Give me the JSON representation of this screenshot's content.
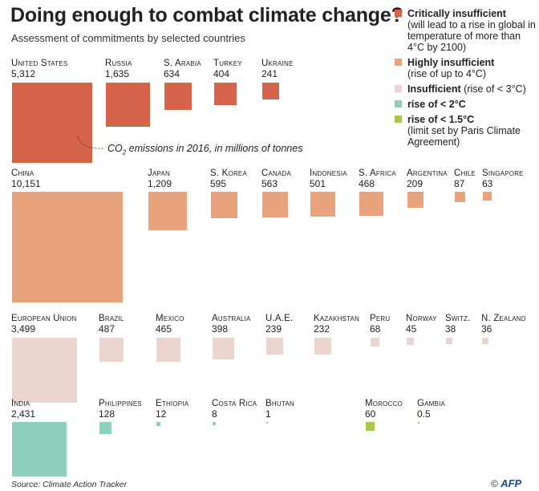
{
  "header": {
    "title": "Doing enough to combat climate change?",
    "subtitle": "Assessment of commitments by selected countries"
  },
  "annotation": {
    "prefix": "CO",
    "sub": "2",
    "suffix": " emissions in 2016, in millions of tonnes"
  },
  "legend": [
    {
      "label": "Critically insufficient",
      "note": "(will lead to a rise in global in temperature of more than 4°C by 2100)",
      "color": "#d4654a"
    },
    {
      "label": "Highly insufficient",
      "note": "(rise of up to 4°C)",
      "color": "#e9a47e"
    },
    {
      "label": "Insufficient",
      "note": "(rise of < 3°C)",
      "color": "#ecd5ce"
    },
    {
      "label": "rise of < 2°C",
      "note": "",
      "color": "#8dd0c0"
    },
    {
      "label": "rise of < 1.5°C",
      "note": "(limit set by Paris Climate Agreement)",
      "color": "#a7c84a"
    }
  ],
  "source": "Source: Climate Action Tracker",
  "credit": {
    "copyright": "©",
    "brand": "AFP"
  },
  "chart_data": {
    "type": "proportional-area squares",
    "unit": "CO2 emissions in 2016, in millions of tonnes",
    "categories": [
      {
        "name": "Critically insufficient",
        "countries": [
          {
            "name": "United States",
            "value": "5,312",
            "num": 5312
          },
          {
            "name": "Russia",
            "value": "1,635",
            "num": 1635
          },
          {
            "name": "S. Arabia",
            "value": "634",
            "num": 634
          },
          {
            "name": "Turkey",
            "value": "404",
            "num": 404
          },
          {
            "name": "Ukraine",
            "value": "241",
            "num": 241
          }
        ]
      },
      {
        "name": "Highly insufficient",
        "countries": [
          {
            "name": "China",
            "value": "10,151",
            "num": 10151
          },
          {
            "name": "Japan",
            "value": "1,209",
            "num": 1209
          },
          {
            "name": "S. Korea",
            "value": "595",
            "num": 595
          },
          {
            "name": "Canada",
            "value": "563",
            "num": 563
          },
          {
            "name": "Indonesia",
            "value": "501",
            "num": 501
          },
          {
            "name": "S. Africa",
            "value": "468",
            "num": 468
          },
          {
            "name": "Argentina",
            "value": "209",
            "num": 209
          },
          {
            "name": "Chile",
            "value": "87",
            "num": 87
          },
          {
            "name": "Singapore",
            "value": "63",
            "num": 63
          }
        ]
      },
      {
        "name": "Insufficient",
        "countries": [
          {
            "name": "European Union",
            "value": "3,499",
            "num": 3499
          },
          {
            "name": "Brazil",
            "value": "487",
            "num": 487
          },
          {
            "name": "Mexico",
            "value": "465",
            "num": 465
          },
          {
            "name": "Australia",
            "value": "398",
            "num": 398
          },
          {
            "name": "U.A.E.",
            "value": "239",
            "num": 239
          },
          {
            "name": "Kazakhstan",
            "value": "232",
            "num": 232
          },
          {
            "name": "Peru",
            "value": "68",
            "num": 68
          },
          {
            "name": "Norway",
            "value": "45",
            "num": 45
          },
          {
            "name": "Switz.",
            "value": "38",
            "num": 38
          },
          {
            "name": "N. Zealand",
            "value": "36",
            "num": 36
          }
        ]
      },
      {
        "name": "rise of < 2°C",
        "countries": [
          {
            "name": "India",
            "value": "2,431",
            "num": 2431
          },
          {
            "name": "Philippines",
            "value": "128",
            "num": 128
          },
          {
            "name": "Ethiopia",
            "value": "12",
            "num": 12
          },
          {
            "name": "Costa Rica",
            "value": "8",
            "num": 8
          },
          {
            "name": "Bhutan",
            "value": "1",
            "num": 1
          }
        ]
      },
      {
        "name": "rise of < 1.5°C",
        "countries": [
          {
            "name": "Morocco",
            "value": "60",
            "num": 60
          },
          {
            "name": "Gambia",
            "value": "0.5",
            "num": 0.5
          }
        ]
      }
    ]
  }
}
